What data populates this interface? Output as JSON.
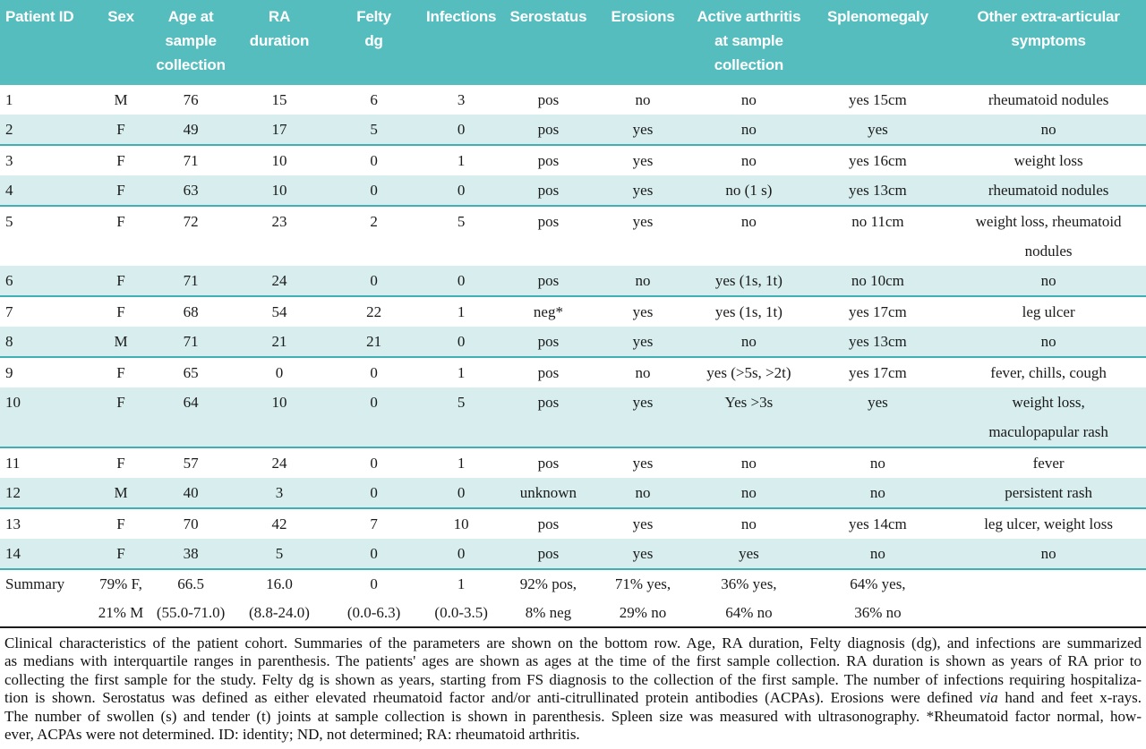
{
  "colors": {
    "header_bg": "#56bdbf",
    "stripe_bg": "#d7edee",
    "stripe_border": "#3fb1b4",
    "bottom_rule": "#1c1c1c"
  },
  "table": {
    "header": [
      [
        "Patient ID"
      ],
      [
        "Sex"
      ],
      [
        "Age at",
        "sample",
        "collection"
      ],
      [
        "RA",
        "duration"
      ],
      [
        "Felty",
        "dg"
      ],
      [
        "Infections"
      ],
      [
        "Serostatus"
      ],
      [
        "Erosions"
      ],
      [
        "Active arthritis",
        "at sample",
        "collection"
      ],
      [
        "Splenomegaly"
      ],
      [
        "Other extra-articular",
        "symptoms"
      ]
    ],
    "rows": [
      [
        "1",
        "M",
        "76",
        "15",
        "6",
        "3",
        "pos",
        "no",
        "no",
        "yes 15cm",
        "rheumatoid nodules"
      ],
      [
        "2",
        "F",
        "49",
        "17",
        "5",
        "0",
        "pos",
        "yes",
        "no",
        "yes",
        "no"
      ],
      [
        "3",
        "F",
        "71",
        "10",
        "0",
        "1",
        "pos",
        "yes",
        "no",
        "yes 16cm",
        "weight loss"
      ],
      [
        "4",
        "F",
        "63",
        "10",
        "0",
        "0",
        "pos",
        "yes",
        "no (1 s)",
        "yes 13cm",
        "rheumatoid nodules"
      ],
      [
        "5",
        "F",
        "72",
        "23",
        "2",
        "5",
        "pos",
        "yes",
        "no",
        "no 11cm",
        [
          "weight loss, rheumatoid",
          "nodules"
        ]
      ],
      [
        "6",
        "F",
        "71",
        "24",
        "0",
        "0",
        "pos",
        "no",
        "yes (1s, 1t)",
        "no 10cm",
        "no"
      ],
      [
        "7",
        "F",
        "68",
        "54",
        "22",
        "1",
        "neg*",
        "yes",
        "yes (1s, 1t)",
        "yes 17cm",
        "leg ulcer"
      ],
      [
        "8",
        "M",
        "71",
        "21",
        "21",
        "0",
        "pos",
        "yes",
        "no",
        "yes 13cm",
        "no"
      ],
      [
        "9",
        "F",
        "65",
        "0",
        "0",
        "1",
        "pos",
        "no",
        "yes (>5s, >2t)",
        "yes 17cm",
        "fever, chills, cough"
      ],
      [
        "10",
        "F",
        "64",
        "10",
        "0",
        "5",
        "pos",
        "yes",
        "Yes >3s",
        "yes",
        [
          "weight loss,",
          "maculopapular rash"
        ]
      ],
      [
        "11",
        "F",
        "57",
        "24",
        "0",
        "1",
        "pos",
        "yes",
        "no",
        "no",
        "fever"
      ],
      [
        "12",
        "M",
        "40",
        "3",
        "0",
        "0",
        "unknown",
        "no",
        "no",
        "no",
        "persistent rash"
      ],
      [
        "13",
        "F",
        "70",
        "42",
        "7",
        "10",
        "pos",
        "yes",
        "no",
        "yes 14cm",
        "leg ulcer, weight loss"
      ],
      [
        "14",
        "F",
        "38",
        "5",
        "0",
        "0",
        "pos",
        "yes",
        "yes",
        "no",
        "no"
      ]
    ],
    "summary": [
      [
        "Summary"
      ],
      [
        "79% F,",
        "21% M"
      ],
      [
        "66.5",
        "(55.0-71.0)"
      ],
      [
        "16.0",
        "(8.8-24.0)"
      ],
      [
        "0",
        "(0.0-6.3)"
      ],
      [
        "1",
        "(0.0-3.5)"
      ],
      [
        "92% pos,",
        "8% neg"
      ],
      [
        "71% yes,",
        "29% no"
      ],
      [
        "36% yes,",
        "64% no"
      ],
      [
        "64% yes,",
        "36% no"
      ],
      [
        ""
      ]
    ]
  },
  "caption": {
    "lines": [
      {
        "segments": [
          {
            "text": "Clinical characteristics of the patient cohort. Summaries of the parameters are shown on the bottom row. Age, RA duration, Felty diagnosis (dg), and infections are summarized",
            "italic": false
          }
        ]
      },
      {
        "segments": [
          {
            "text": "as medians with interquartile ranges in parenthesis. The patients' ages are shown as ages at the time of the first sample collection. RA duration is shown as years of RA prior to",
            "italic": false
          }
        ]
      },
      {
        "segments": [
          {
            "text": "collecting the first sample for the study. Felty dg is shown as years, starting from FS diagnosis to the collection of the first sample. The number of infections requiring hospitaliza-",
            "italic": false
          }
        ]
      },
      {
        "segments": [
          {
            "text": "tion is shown. Serostatus was defined as either elevated rheumatoid factor and/or anti-citrullinated protein antibodies (ACPAs). Erosions were defined ",
            "italic": false
          },
          {
            "text": "via",
            "italic": true
          },
          {
            "text": " hand and feet x-rays.",
            "italic": false
          }
        ]
      },
      {
        "segments": [
          {
            "text": "The number of swollen (s) and tender (t) joints at sample collection is shown in parenthesis. Spleen size was measured with ultrasonography. *Rheumatoid factor normal, how-",
            "italic": false
          }
        ]
      },
      {
        "segments": [
          {
            "text": "ever, ACPAs were not determined. ID: identity; ND, not determined; RA: rheumatoid arthritis.",
            "italic": false
          }
        ]
      }
    ]
  }
}
